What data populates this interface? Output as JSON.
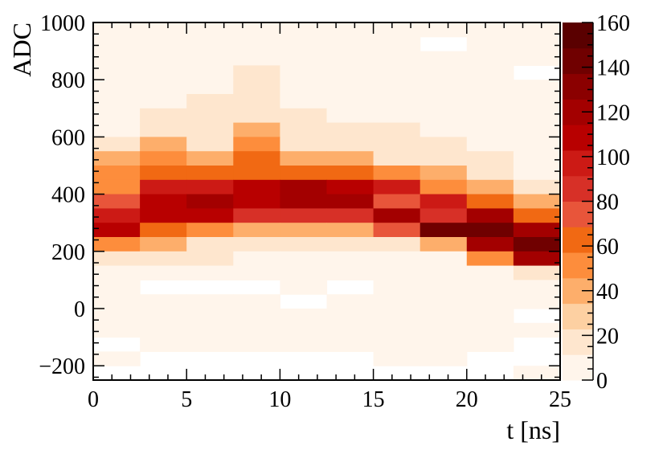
{
  "chart_data": {
    "type": "heatmap",
    "xlabel": "t [ns]",
    "ylabel": "ADC",
    "xlim": [
      0,
      25
    ],
    "ylim": [
      -250,
      1000
    ],
    "x_bin_width": 2.5,
    "y_bin_width": 50,
    "x_ticks": [
      0,
      5,
      10,
      15,
      20,
      25
    ],
    "x_tick_labels": [
      "0",
      "5",
      "10",
      "15",
      "20",
      "25"
    ],
    "y_ticks": [
      -200,
      0,
      200,
      400,
      600,
      800,
      1000
    ],
    "y_tick_labels": [
      "−200",
      "0",
      "200",
      "400",
      "600",
      "800",
      "1000"
    ],
    "colorbar": {
      "range": [
        0,
        160
      ],
      "ticks": [
        0,
        20,
        40,
        60,
        80,
        100,
        120,
        140,
        160
      ],
      "tick_labels": [
        "0",
        "20",
        "40",
        "60",
        "80",
        "100",
        "120",
        "140",
        "160"
      ],
      "colors": [
        "#fff5eb",
        "#fee6ce",
        "#fdd0a2",
        "#fdae6b",
        "#fd8d3c",
        "#f16913",
        "#e8553a",
        "#d73027",
        "#cc1a15",
        "#b80000",
        "#a30000",
        "#8b0000",
        "#700000",
        "#5a0000"
      ]
    },
    "x_bin_starts": [
      0,
      2.5,
      5,
      7.5,
      10,
      12.5,
      15,
      17.5,
      20,
      22.5
    ],
    "y_bin_starts_top_down": [
      950,
      900,
      850,
      800,
      750,
      700,
      650,
      600,
      550,
      500,
      450,
      400,
      350,
      300,
      250,
      200,
      150,
      100,
      50,
      0,
      -50,
      -100,
      -150,
      -200,
      -250
    ],
    "values": [
      [
        5,
        5,
        5,
        5,
        5,
        5,
        5,
        5,
        5,
        5
      ],
      [
        5,
        5,
        5,
        5,
        5,
        5,
        5,
        0,
        5,
        5
      ],
      [
        5,
        5,
        5,
        5,
        5,
        5,
        5,
        5,
        5,
        5
      ],
      [
        5,
        5,
        5,
        15,
        5,
        5,
        5,
        5,
        5,
        0
      ],
      [
        5,
        5,
        5,
        15,
        5,
        5,
        5,
        5,
        5,
        5
      ],
      [
        5,
        5,
        15,
        15,
        5,
        5,
        5,
        5,
        5,
        5
      ],
      [
        5,
        15,
        15,
        15,
        15,
        5,
        5,
        5,
        5,
        5
      ],
      [
        5,
        15,
        15,
        35,
        15,
        15,
        15,
        5,
        5,
        5
      ],
      [
        15,
        35,
        15,
        55,
        15,
        15,
        15,
        15,
        5,
        5
      ],
      [
        35,
        55,
        35,
        65,
        35,
        35,
        15,
        15,
        15,
        5
      ],
      [
        55,
        65,
        65,
        65,
        65,
        65,
        55,
        35,
        15,
        5
      ],
      [
        55,
        95,
        95,
        105,
        125,
        105,
        95,
        55,
        35,
        15
      ],
      [
        75,
        105,
        125,
        105,
        125,
        115,
        75,
        95,
        65,
        35
      ],
      [
        95,
        105,
        105,
        85,
        85,
        85,
        125,
        85,
        125,
        65
      ],
      [
        105,
        65,
        55,
        35,
        35,
        35,
        75,
        145,
        145,
        115
      ],
      [
        55,
        35,
        15,
        15,
        15,
        15,
        15,
        45,
        125,
        145
      ],
      [
        15,
        15,
        15,
        5,
        5,
        5,
        5,
        5,
        55,
        125
      ],
      [
        5,
        5,
        5,
        5,
        5,
        5,
        5,
        5,
        5,
        15
      ],
      [
        5,
        0,
        0,
        0,
        5,
        0,
        5,
        5,
        5,
        5
      ],
      [
        5,
        5,
        5,
        5,
        0,
        5,
        5,
        5,
        5,
        5
      ],
      [
        5,
        5,
        5,
        5,
        5,
        5,
        5,
        5,
        5,
        0
      ],
      [
        5,
        5,
        5,
        5,
        5,
        5,
        5,
        5,
        5,
        5
      ],
      [
        0,
        5,
        5,
        5,
        5,
        5,
        5,
        5,
        5,
        0
      ],
      [
        5,
        0,
        0,
        0,
        0,
        0,
        5,
        5,
        0,
        0
      ],
      [
        0,
        0,
        0,
        0,
        0,
        0,
        0,
        0,
        0,
        5
      ]
    ]
  }
}
